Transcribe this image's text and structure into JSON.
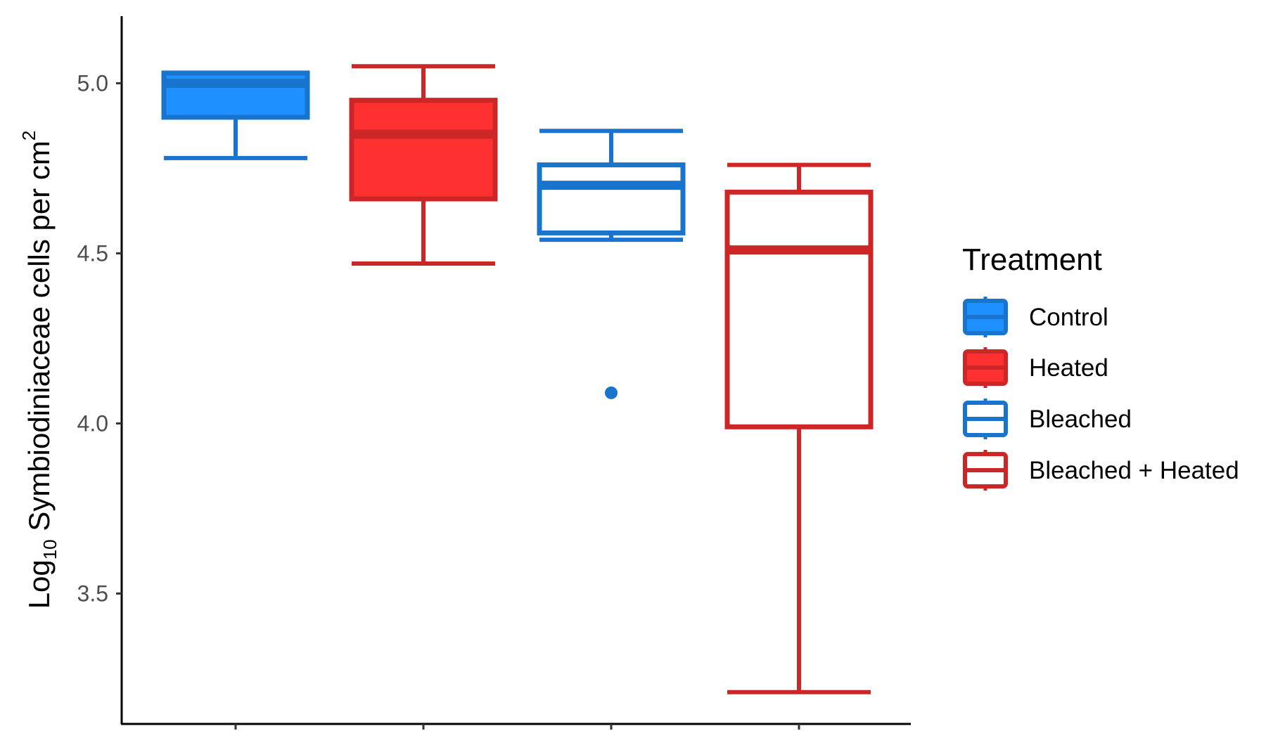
{
  "chart_data": {
    "type": "box",
    "title": "",
    "xlabel": "",
    "ylabel": {
      "prefix": "Log",
      "subscript": "10",
      "main": " Symbiodiniaceae cells per cm",
      "superscript": "2"
    },
    "ylim": [
      3.16,
      5.16
    ],
    "yticks": [
      3.5,
      4.0,
      4.5,
      5.0
    ],
    "ytick_labels": [
      "3.5",
      "4.0",
      "4.5",
      "5.0"
    ],
    "legend": {
      "title": "Treatment",
      "position": "right"
    },
    "series": [
      {
        "name": "Control",
        "color": "#1874cd",
        "fill": "#1e90ff",
        "filled": true,
        "whisker_low": 4.78,
        "q1": 4.9,
        "median": 5.0,
        "q3": 5.03,
        "whisker_high": 5.03,
        "outliers": []
      },
      {
        "name": "Heated",
        "color": "#cd2626",
        "fill": "#ff3030",
        "filled": true,
        "whisker_low": 4.47,
        "q1": 4.66,
        "median": 4.85,
        "q3": 4.95,
        "whisker_high": 5.05,
        "outliers": []
      },
      {
        "name": "Bleached",
        "color": "#1874cd",
        "fill": "#ffffff",
        "filled": false,
        "whisker_low": 4.54,
        "q1": 4.56,
        "median": 4.7,
        "q3": 4.76,
        "whisker_high": 4.86,
        "outliers": [
          4.09
        ]
      },
      {
        "name": "Bleached + Heated",
        "color": "#cd2626",
        "fill": "#ffffff",
        "filled": false,
        "whisker_low": 3.21,
        "q1": 3.99,
        "median": 4.51,
        "q3": 4.68,
        "whisker_high": 4.76,
        "outliers": []
      }
    ]
  }
}
